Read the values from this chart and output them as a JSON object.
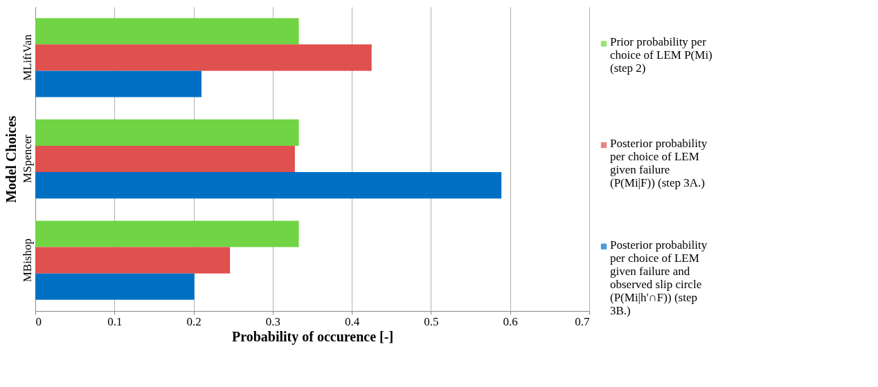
{
  "chart_data": {
    "type": "bar",
    "orientation": "horizontal",
    "xlabel": "Probability of occurence [-]",
    "ylabel": "Model Choices",
    "categories": [
      "MLiftVan",
      "MSpencer",
      "MBishop"
    ],
    "series": [
      {
        "name": "Prior probability per choice of LEM P(Mi) (step 2)",
        "color": "#70d444",
        "values": [
          0.333,
          0.333,
          0.333
        ]
      },
      {
        "name": "Posterior probability per choice of LEM given failure (P(Mi|F)) (step 3A.)",
        "color": "#df504e",
        "values": [
          0.425,
          0.328,
          0.246
        ]
      },
      {
        "name": "Posterior probability per choice of LEM given failure and observed slip circle (P(Mi|h'∩F)) (step 3B.)",
        "color": "#0070c4",
        "values": [
          0.21,
          0.589,
          0.201
        ]
      }
    ],
    "xlim": [
      0,
      0.7
    ],
    "xticks": [
      0,
      0.1,
      0.2,
      0.3,
      0.4,
      0.5,
      0.6,
      0.7
    ],
    "grid": "x",
    "legend": "right"
  }
}
